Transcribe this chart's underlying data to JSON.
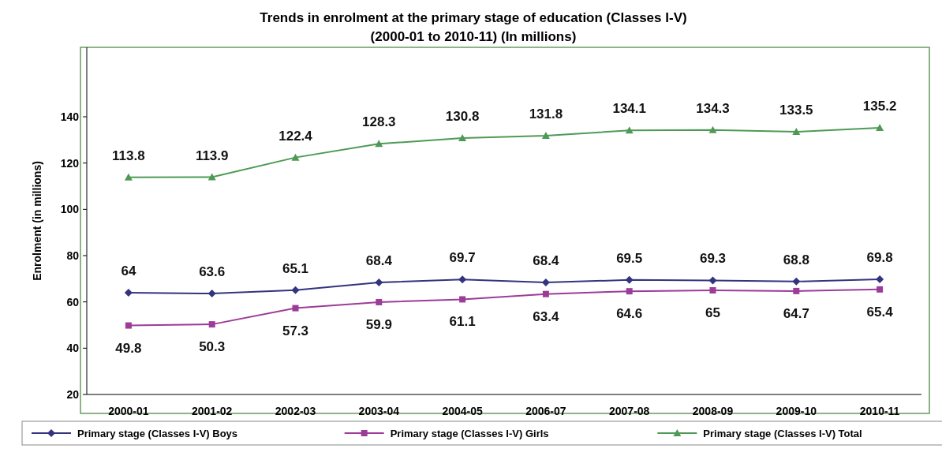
{
  "chart_data": {
    "type": "line",
    "title": "Trends in enrolment at the primary stage of education (Classes I-V)",
    "subtitle": "(2000-01 to 2010-11) (In millions)",
    "ylabel": "Enrolment (in millions)",
    "categories": [
      "2000-01",
      "2001-02",
      "2002-03",
      "2003-04",
      "2004-05",
      "2006-07",
      "2007-08",
      "2008-09",
      "2009-10",
      "2010-11"
    ],
    "series": [
      {
        "name": "Primary stage (Classes I-V) Boys",
        "color": "#33337f",
        "marker": "diamond",
        "values": [
          64,
          63.6,
          65.1,
          68.4,
          69.7,
          68.4,
          69.5,
          69.3,
          68.8,
          69.8
        ]
      },
      {
        "name": "Primary stage (Classes I-V) Girls",
        "color": "#9c3c98",
        "marker": "square",
        "values": [
          49.8,
          50.3,
          57.3,
          59.9,
          61.1,
          63.4,
          64.6,
          65,
          64.7,
          65.4
        ]
      },
      {
        "name": "Primary stage (Classes I-V) Total",
        "color": "#4e9a55",
        "marker": "triangle",
        "values": [
          113.8,
          113.9,
          122.4,
          128.3,
          130.8,
          131.8,
          134.1,
          134.3,
          133.5,
          135.2
        ]
      }
    ],
    "ylim": [
      20,
      170
    ],
    "yticks": [
      20,
      40,
      60,
      80,
      100,
      120,
      140
    ],
    "data_labels": true,
    "legend": "bottom",
    "grid": false
  }
}
